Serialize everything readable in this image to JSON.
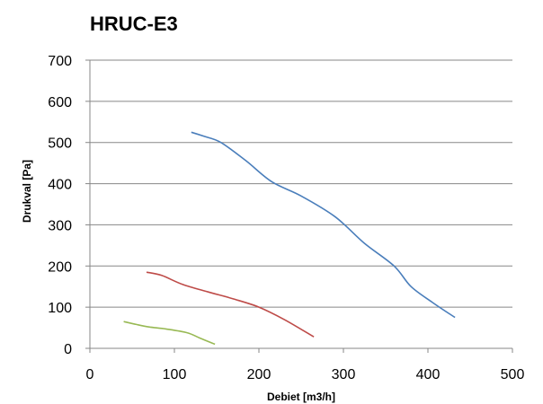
{
  "chart_data": {
    "type": "line",
    "title": "HRUC-E3",
    "xlabel": "Debiet [m3/h]",
    "ylabel": "Drukval [Pa]",
    "xlim": [
      0,
      500
    ],
    "ylim": [
      0,
      700
    ],
    "x_ticks": [
      0,
      100,
      200,
      300,
      400,
      500
    ],
    "y_ticks": [
      0,
      100,
      200,
      300,
      400,
      500,
      600,
      700
    ],
    "grid": "horizontal",
    "legend": "none",
    "series": [
      {
        "color": "#4A7EBB",
        "points": [
          [
            120,
            525
          ],
          [
            135,
            515
          ],
          [
            155,
            500
          ],
          [
            185,
            455
          ],
          [
            215,
            405
          ],
          [
            250,
            370
          ],
          [
            290,
            320
          ],
          [
            325,
            255
          ],
          [
            360,
            200
          ],
          [
            380,
            150
          ],
          [
            405,
            112
          ],
          [
            432,
            75
          ]
        ]
      },
      {
        "color": "#BE4B48",
        "points": [
          [
            67,
            185
          ],
          [
            85,
            177
          ],
          [
            110,
            155
          ],
          [
            140,
            137
          ],
          [
            170,
            120
          ],
          [
            200,
            100
          ],
          [
            230,
            70
          ],
          [
            265,
            28
          ]
        ]
      },
      {
        "color": "#98B954",
        "points": [
          [
            40,
            65
          ],
          [
            55,
            58
          ],
          [
            70,
            52
          ],
          [
            90,
            47
          ],
          [
            115,
            38
          ],
          [
            130,
            25
          ],
          [
            148,
            10
          ]
        ]
      }
    ]
  }
}
